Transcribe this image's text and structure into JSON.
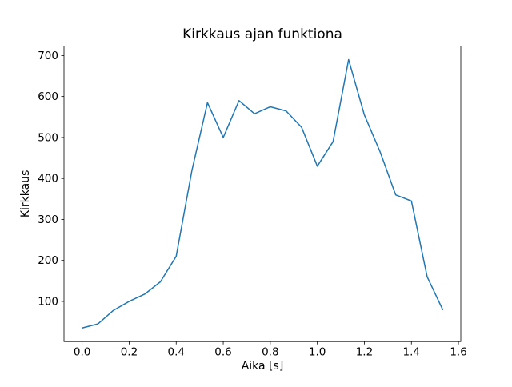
{
  "figure": {
    "background_color": "#ffffff",
    "text_color": "#000000",
    "spine_color": "#000000"
  },
  "chart_data": {
    "type": "line",
    "title": "Kirkkaus ajan funktiona",
    "xlabel": "Aika [s]",
    "ylabel": "Kirkkaus",
    "line_color": "#1f77b4",
    "line_width": 1.5,
    "grid": false,
    "legend": false,
    "xlim": [
      -0.077,
      1.61
    ],
    "ylim": [
      2,
      723
    ],
    "xticks": [
      0.0,
      0.2,
      0.4,
      0.6,
      0.8,
      1.0,
      1.2,
      1.4,
      1.6
    ],
    "xtick_labels": [
      "0.0",
      "0.2",
      "0.4",
      "0.6",
      "0.8",
      "1.0",
      "1.2",
      "1.4",
      "1.6"
    ],
    "yticks": [
      100,
      200,
      300,
      400,
      500,
      600,
      700
    ],
    "ytick_labels": [
      "100",
      "200",
      "300",
      "400",
      "500",
      "600",
      "700"
    ],
    "x": [
      0.0,
      0.067,
      0.133,
      0.2,
      0.267,
      0.333,
      0.4,
      0.467,
      0.533,
      0.6,
      0.667,
      0.733,
      0.8,
      0.867,
      0.933,
      1.0,
      1.067,
      1.133,
      1.2,
      1.267,
      1.333,
      1.4,
      1.467,
      1.533
    ],
    "y": [
      35,
      45,
      78,
      100,
      118,
      148,
      210,
      420,
      585,
      500,
      590,
      558,
      575,
      565,
      525,
      430,
      490,
      690,
      555,
      465,
      360,
      345,
      160,
      80
    ]
  }
}
